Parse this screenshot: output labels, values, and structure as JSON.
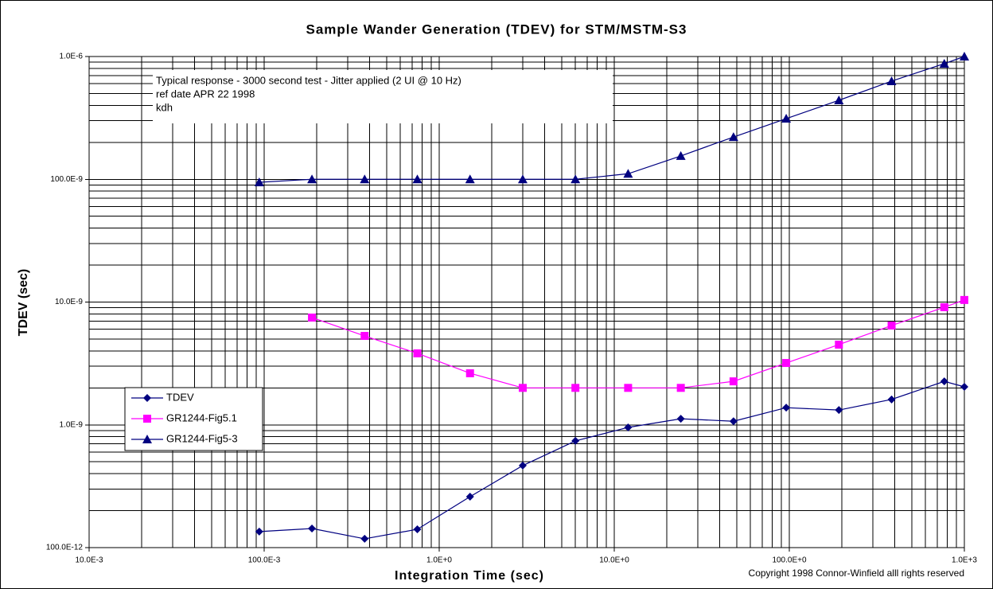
{
  "chart_data": {
    "type": "line",
    "title": "Sample Wander Generation (TDEV) for STM/MSTM-S3",
    "x_label": "Integration Time (sec)",
    "y_label": "TDEV (sec)",
    "annotations": [
      "Typical response - 3000 second test - Jitter applied (2 UI @ 10 Hz)",
      "ref date APR 22 1998",
      "kdh"
    ],
    "copyright": "Copyright 1998 Connor-Winfield alll rights reserved",
    "x": [
      0.09375,
      0.1875,
      0.375,
      0.75,
      1.5,
      3,
      6,
      12,
      24,
      48,
      96,
      192,
      384,
      768,
      1000
    ],
    "series": [
      {
        "name": "TDEV",
        "color": "#000080",
        "marker": "diamond",
        "values": [
          1.35e-10,
          1.43e-10,
          1.18e-10,
          1.41e-10,
          2.6e-10,
          4.66e-10,
          7.4e-10,
          9.53e-10,
          1.12e-09,
          1.07e-09,
          1.38e-09,
          1.32e-09,
          1.61e-09,
          2.26e-09,
          2.04e-09
        ]
      },
      {
        "name": "GR1244-Fig5.1",
        "color": "#ff00ff",
        "marker": "square",
        "values": [
          null,
          7.48e-09,
          5.3e-09,
          3.82e-09,
          2.63e-09,
          2e-09,
          2e-09,
          2e-09,
          2e-09,
          2.26e-09,
          3.19e-09,
          4.5e-09,
          6.44e-09,
          9.08e-09,
          1.04e-08
        ]
      },
      {
        "name": "GR1244-Fig5-3",
        "color": "#000080",
        "marker": "triangle",
        "values": [
          9.46e-08,
          1e-07,
          1e-07,
          1e-07,
          1e-07,
          1e-07,
          1e-07,
          1.11e-07,
          1.55e-07,
          2.21e-07,
          3.12e-07,
          4.4e-07,
          6.3e-07,
          8.75e-07,
          1e-06
        ]
      }
    ],
    "xlog": true,
    "ylog": true,
    "xlim": [
      0.01,
      1000
    ],
    "ylim": [
      1e-10,
      1e-06
    ],
    "xticks": [
      {
        "value": 0.01,
        "label": "10.0E-3"
      },
      {
        "value": 0.1,
        "label": "100.0E-3"
      },
      {
        "value": 1,
        "label": "1.0E+0"
      },
      {
        "value": 10,
        "label": "10.0E+0"
      },
      {
        "value": 100,
        "label": "100.0E+0"
      },
      {
        "value": 1000,
        "label": "1.0E+3"
      }
    ],
    "yticks": [
      {
        "value": 1e-10,
        "label": "100.0E-12"
      },
      {
        "value": 1e-09,
        "label": "1.0E-9"
      },
      {
        "value": 1e-08,
        "label": "10.0E-9"
      },
      {
        "value": 1e-07,
        "label": "100.0E-9"
      },
      {
        "value": 1e-06,
        "label": "1.0E-6"
      }
    ],
    "grid": true,
    "minor_grid": true,
    "legend": "lower left"
  }
}
